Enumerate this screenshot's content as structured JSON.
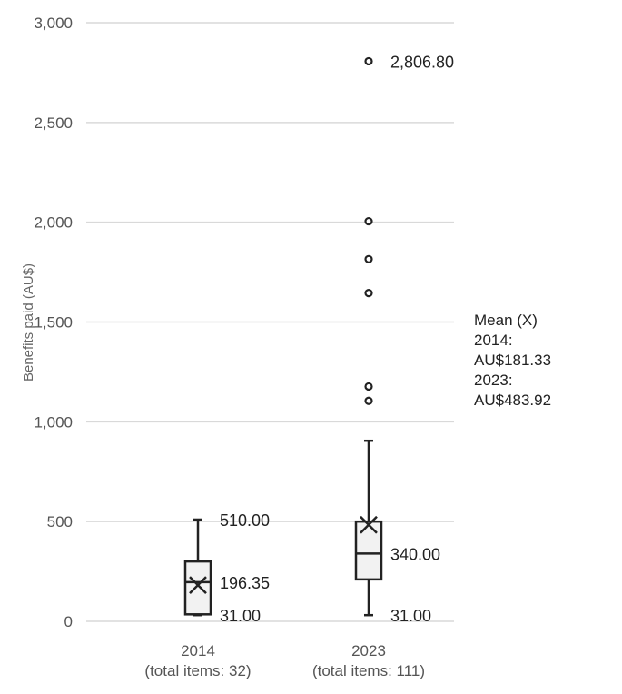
{
  "chart_data": {
    "type": "box",
    "ylabel": "Benefits paid (AU$)",
    "ylim": [
      0,
      3000
    ],
    "yticks": [
      0,
      500,
      1000,
      1500,
      2000,
      2500,
      3000
    ],
    "ytick_labels": [
      "0",
      "500",
      "1,000",
      "1,500",
      "2,000",
      "2,500",
      "3,000"
    ],
    "grid": true,
    "categories": [
      "2014",
      "2023"
    ],
    "category_labels": [
      [
        "2014",
        "(total items: 32)"
      ],
      [
        "2023",
        "(total items: 111)"
      ]
    ],
    "boxes": [
      {
        "category": "2014",
        "min": 31,
        "q1": 35,
        "median": 196.35,
        "q3": 300,
        "max": 510,
        "mean": 181.33,
        "outliers": [],
        "labels": [
          {
            "text": "510.00",
            "value": 510
          },
          {
            "text": "196.35",
            "value": 196.35
          },
          {
            "text": "31.00",
            "value": 31
          }
        ]
      },
      {
        "category": "2023",
        "min": 31,
        "q1": 210,
        "median": 340,
        "q3": 500,
        "max": 905,
        "mean": 483.92,
        "outliers": [
          1105,
          1177,
          1645,
          1815,
          2005,
          2806.8
        ],
        "labels": [
          {
            "text": "2,806.80",
            "value": 2806.8
          },
          {
            "text": "340.00",
            "value": 340
          },
          {
            "text": "31.00",
            "value": 31
          }
        ]
      }
    ],
    "annotation": [
      "Mean (X)",
      "2014:",
      "AU$181.33",
      "2023:",
      "AU$483.92"
    ],
    "colors": {
      "box_fill": "#f2f2f2",
      "stroke": "#222222",
      "grid": "#d9d9d9"
    }
  }
}
